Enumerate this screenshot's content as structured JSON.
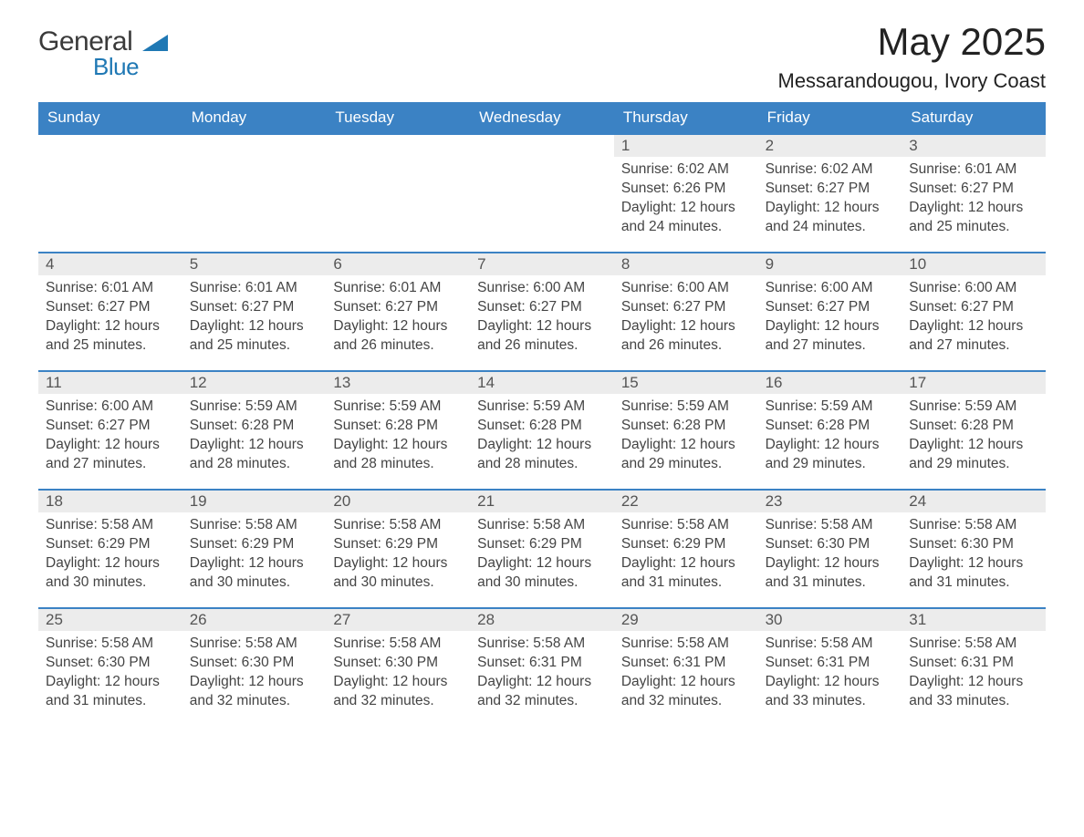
{
  "logo": {
    "word1": "General",
    "word2": "Blue",
    "mark_color": "#1f78b4"
  },
  "header": {
    "title": "May 2025",
    "location": "Messarandougou, Ivory Coast"
  },
  "colors": {
    "header_blue": "#3b82c4",
    "accent_blue": "#1f78b4",
    "row_grey": "#ececec",
    "text": "#333333",
    "background": "#ffffff"
  },
  "weekdays": [
    "Sunday",
    "Monday",
    "Tuesday",
    "Wednesday",
    "Thursday",
    "Friday",
    "Saturday"
  ],
  "leading_blanks": 4,
  "days": [
    {
      "n": 1,
      "sunrise": "6:02 AM",
      "sunset": "6:26 PM",
      "daylight": "12 hours and 24 minutes."
    },
    {
      "n": 2,
      "sunrise": "6:02 AM",
      "sunset": "6:27 PM",
      "daylight": "12 hours and 24 minutes."
    },
    {
      "n": 3,
      "sunrise": "6:01 AM",
      "sunset": "6:27 PM",
      "daylight": "12 hours and 25 minutes."
    },
    {
      "n": 4,
      "sunrise": "6:01 AM",
      "sunset": "6:27 PM",
      "daylight": "12 hours and 25 minutes."
    },
    {
      "n": 5,
      "sunrise": "6:01 AM",
      "sunset": "6:27 PM",
      "daylight": "12 hours and 25 minutes."
    },
    {
      "n": 6,
      "sunrise": "6:01 AM",
      "sunset": "6:27 PM",
      "daylight": "12 hours and 26 minutes."
    },
    {
      "n": 7,
      "sunrise": "6:00 AM",
      "sunset": "6:27 PM",
      "daylight": "12 hours and 26 minutes."
    },
    {
      "n": 8,
      "sunrise": "6:00 AM",
      "sunset": "6:27 PM",
      "daylight": "12 hours and 26 minutes."
    },
    {
      "n": 9,
      "sunrise": "6:00 AM",
      "sunset": "6:27 PM",
      "daylight": "12 hours and 27 minutes."
    },
    {
      "n": 10,
      "sunrise": "6:00 AM",
      "sunset": "6:27 PM",
      "daylight": "12 hours and 27 minutes."
    },
    {
      "n": 11,
      "sunrise": "6:00 AM",
      "sunset": "6:27 PM",
      "daylight": "12 hours and 27 minutes."
    },
    {
      "n": 12,
      "sunrise": "5:59 AM",
      "sunset": "6:28 PM",
      "daylight": "12 hours and 28 minutes."
    },
    {
      "n": 13,
      "sunrise": "5:59 AM",
      "sunset": "6:28 PM",
      "daylight": "12 hours and 28 minutes."
    },
    {
      "n": 14,
      "sunrise": "5:59 AM",
      "sunset": "6:28 PM",
      "daylight": "12 hours and 28 minutes."
    },
    {
      "n": 15,
      "sunrise": "5:59 AM",
      "sunset": "6:28 PM",
      "daylight": "12 hours and 29 minutes."
    },
    {
      "n": 16,
      "sunrise": "5:59 AM",
      "sunset": "6:28 PM",
      "daylight": "12 hours and 29 minutes."
    },
    {
      "n": 17,
      "sunrise": "5:59 AM",
      "sunset": "6:28 PM",
      "daylight": "12 hours and 29 minutes."
    },
    {
      "n": 18,
      "sunrise": "5:58 AM",
      "sunset": "6:29 PM",
      "daylight": "12 hours and 30 minutes."
    },
    {
      "n": 19,
      "sunrise": "5:58 AM",
      "sunset": "6:29 PM",
      "daylight": "12 hours and 30 minutes."
    },
    {
      "n": 20,
      "sunrise": "5:58 AM",
      "sunset": "6:29 PM",
      "daylight": "12 hours and 30 minutes."
    },
    {
      "n": 21,
      "sunrise": "5:58 AM",
      "sunset": "6:29 PM",
      "daylight": "12 hours and 30 minutes."
    },
    {
      "n": 22,
      "sunrise": "5:58 AM",
      "sunset": "6:29 PM",
      "daylight": "12 hours and 31 minutes."
    },
    {
      "n": 23,
      "sunrise": "5:58 AM",
      "sunset": "6:30 PM",
      "daylight": "12 hours and 31 minutes."
    },
    {
      "n": 24,
      "sunrise": "5:58 AM",
      "sunset": "6:30 PM",
      "daylight": "12 hours and 31 minutes."
    },
    {
      "n": 25,
      "sunrise": "5:58 AM",
      "sunset": "6:30 PM",
      "daylight": "12 hours and 31 minutes."
    },
    {
      "n": 26,
      "sunrise": "5:58 AM",
      "sunset": "6:30 PM",
      "daylight": "12 hours and 32 minutes."
    },
    {
      "n": 27,
      "sunrise": "5:58 AM",
      "sunset": "6:30 PM",
      "daylight": "12 hours and 32 minutes."
    },
    {
      "n": 28,
      "sunrise": "5:58 AM",
      "sunset": "6:31 PM",
      "daylight": "12 hours and 32 minutes."
    },
    {
      "n": 29,
      "sunrise": "5:58 AM",
      "sunset": "6:31 PM",
      "daylight": "12 hours and 32 minutes."
    },
    {
      "n": 30,
      "sunrise": "5:58 AM",
      "sunset": "6:31 PM",
      "daylight": "12 hours and 33 minutes."
    },
    {
      "n": 31,
      "sunrise": "5:58 AM",
      "sunset": "6:31 PM",
      "daylight": "12 hours and 33 minutes."
    }
  ],
  "labels": {
    "sunrise": "Sunrise:",
    "sunset": "Sunset:",
    "daylight": "Daylight:"
  }
}
